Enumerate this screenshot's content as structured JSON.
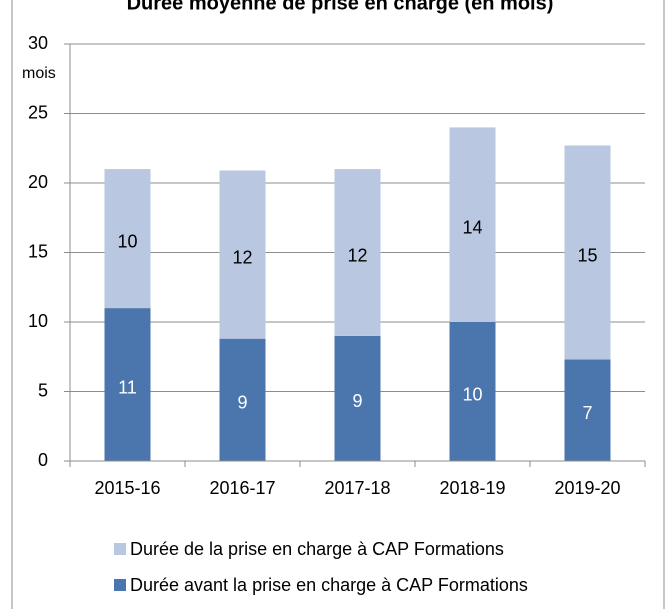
{
  "chart_data": {
    "type": "stacked_bar",
    "title": "Durée moyenne de prise en charge (en mois)",
    "y_label": "mois",
    "categories": [
      "2015-16",
      "2016-17",
      "2017-18",
      "2018-19",
      "2019-20"
    ],
    "series": [
      {
        "name": "Durée avant la prise en charge à CAP Formations",
        "color": "#4a76ad",
        "values": [
          11,
          8.8,
          9,
          10,
          7.3
        ],
        "value_labels": [
          "11",
          "9",
          "9",
          "10",
          "7"
        ]
      },
      {
        "name": "Durée de la prise en charge à CAP Formations",
        "color": "#b9c7e0",
        "values": [
          10,
          12.1,
          12,
          14,
          15.4
        ],
        "value_labels": [
          "10",
          "12",
          "12",
          "14",
          "15"
        ]
      }
    ],
    "ylim": [
      0,
      30
    ],
    "yticks": [
      0,
      5,
      10,
      15,
      20,
      25,
      30
    ],
    "grid": true,
    "legend": "bottom"
  }
}
